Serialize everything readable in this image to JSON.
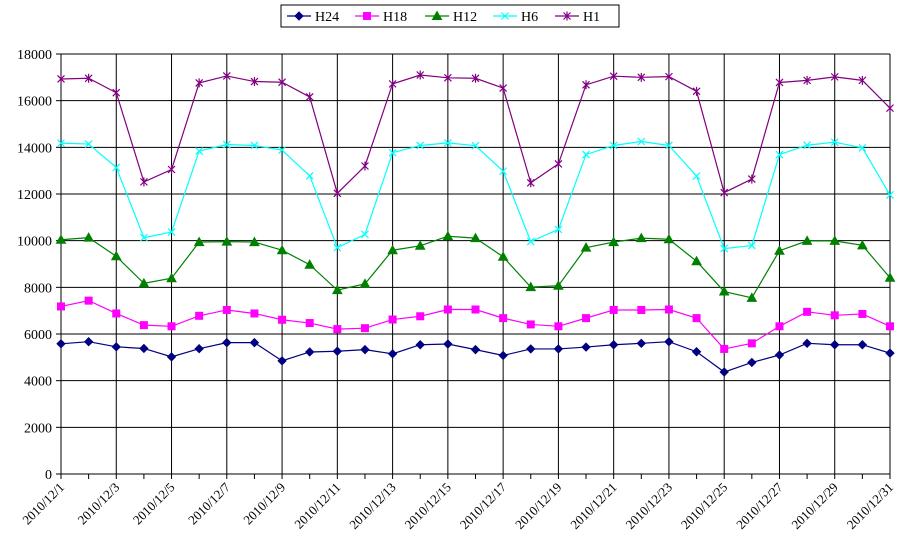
{
  "chart_data": {
    "type": "line",
    "title": "",
    "xlabel": "",
    "ylabel": "",
    "ylim": [
      0,
      18000
    ],
    "yticks": [
      0,
      2000,
      4000,
      6000,
      8000,
      10000,
      12000,
      14000,
      16000,
      18000
    ],
    "grid": true,
    "legend_position": "top",
    "x": [
      "2010/12/1",
      "2010/12/2",
      "2010/12/3",
      "2010/12/4",
      "2010/12/5",
      "2010/12/6",
      "2010/12/7",
      "2010/12/8",
      "2010/12/9",
      "2010/12/10",
      "2010/12/11",
      "2010/12/12",
      "2010/12/13",
      "2010/12/14",
      "2010/12/15",
      "2010/12/16",
      "2010/12/17",
      "2010/12/18",
      "2010/12/19",
      "2010/12/20",
      "2010/12/21",
      "2010/12/22",
      "2010/12/23",
      "2010/12/24",
      "2010/12/25",
      "2010/12/26",
      "2010/12/27",
      "2010/12/28",
      "2010/12/29",
      "2010/12/30",
      "2010/12/31"
    ],
    "x_tick_labels": [
      "2010/12/1",
      "2010/12/3",
      "2010/12/5",
      "2010/12/7",
      "2010/12/9",
      "2010/12/11",
      "2010/12/13",
      "2010/12/15",
      "2010/12/17",
      "2010/12/19",
      "2010/12/21",
      "2010/12/23",
      "2010/12/25",
      "2010/12/27",
      "2010/12/29",
      "2010/12/31"
    ],
    "series": [
      {
        "name": "H24",
        "color": "#000080",
        "marker": "diamond",
        "values": [
          5580,
          5670,
          5450,
          5380,
          5020,
          5370,
          5630,
          5630,
          4850,
          5230,
          5260,
          5330,
          5150,
          5540,
          5570,
          5330,
          5080,
          5360,
          5360,
          5440,
          5540,
          5600,
          5670,
          5240,
          4370,
          4780,
          5100,
          5600,
          5540,
          5540,
          5180
        ]
      },
      {
        "name": "H18",
        "color": "#ff00ff",
        "marker": "square",
        "values": [
          7180,
          7430,
          6880,
          6380,
          6330,
          6780,
          7030,
          6880,
          6610,
          6470,
          6210,
          6250,
          6620,
          6760,
          7050,
          7050,
          6680,
          6410,
          6330,
          6680,
          7030,
          7030,
          7050,
          6680,
          5360,
          5600,
          6330,
          6950,
          6800,
          6860,
          6330
        ]
      },
      {
        "name": "H12",
        "color": "#008000",
        "marker": "triangle",
        "values": [
          10040,
          10130,
          9330,
          8170,
          8390,
          9940,
          9960,
          9940,
          9590,
          8970,
          7880,
          8150,
          9590,
          9780,
          10190,
          10110,
          9310,
          8010,
          8070,
          9700,
          9940,
          10110,
          10060,
          9120,
          7820,
          7550,
          9570,
          9990,
          9990,
          9800,
          8410
        ]
      },
      {
        "name": "H6",
        "color": "#00ffff",
        "marker": "x",
        "values": [
          14180,
          14140,
          13140,
          10130,
          10370,
          13840,
          14120,
          14080,
          13880,
          12780,
          9700,
          10270,
          13770,
          14080,
          14190,
          14070,
          12980,
          9960,
          10480,
          13690,
          14080,
          14250,
          14080,
          12770,
          9660,
          9790,
          13690,
          14090,
          14220,
          13980,
          11960
        ]
      },
      {
        "name": "H1",
        "color": "#800080",
        "marker": "star",
        "values": [
          16930,
          16960,
          16340,
          12520,
          13050,
          16760,
          17060,
          16820,
          16790,
          16160,
          12030,
          13200,
          16720,
          17100,
          16980,
          16960,
          16540,
          12480,
          13290,
          16680,
          17050,
          17000,
          17030,
          16400,
          12060,
          12640,
          16780,
          16870,
          17020,
          16870,
          15680
        ]
      }
    ]
  }
}
